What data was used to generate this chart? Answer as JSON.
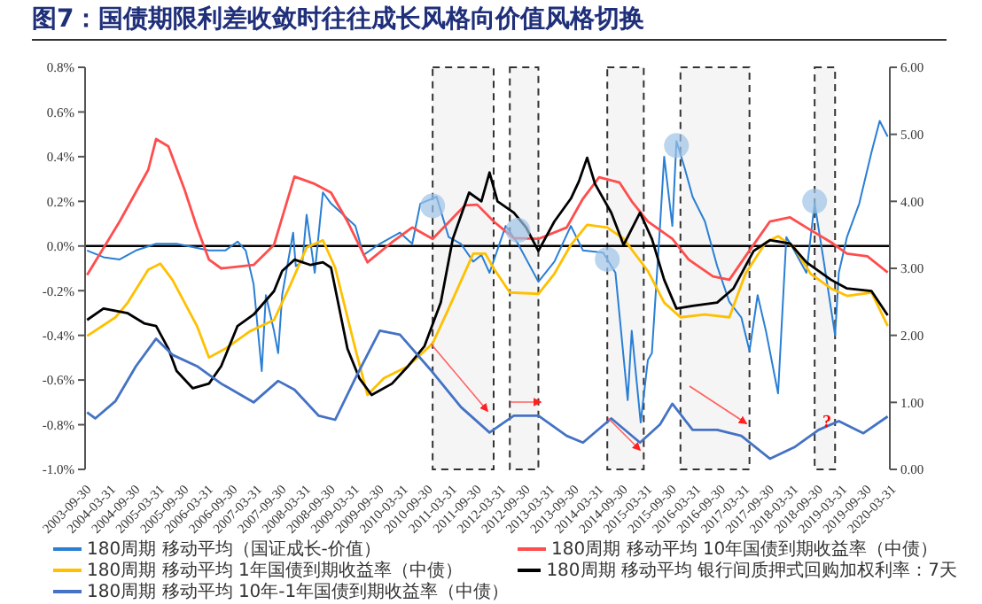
{
  "chart_data": {
    "type": "line",
    "title": "图7：国债期限利差收敛时往往成长风格向价值风格切换",
    "xlim": [
      "2003-09-30",
      "2020-03-31"
    ],
    "xticks": [
      "2003-09-30",
      "2004-03-31",
      "2004-09-30",
      "2005-03-31",
      "2005-09-30",
      "2006-03-31",
      "2006-09-30",
      "2007-03-31",
      "2007-09-30",
      "2008-03-31",
      "2008-09-30",
      "2009-03-31",
      "2009-09-30",
      "2010-03-31",
      "2010-09-30",
      "2011-03-31",
      "2011-09-30",
      "2012-03-31",
      "2012-09-30",
      "2013-03-31",
      "2013-09-30",
      "2014-03-31",
      "2014-09-30",
      "2015-03-31",
      "2015-09-30",
      "2016-03-31",
      "2016-09-30",
      "2017-03-31",
      "2017-09-30",
      "2018-03-31",
      "2018-09-30",
      "2019-03-31",
      "2019-09-30",
      "2020-03-31"
    ],
    "ylim": [
      -1.0,
      0.8
    ],
    "yticks": [
      {
        "value": -1.0,
        "label": "-1.0%"
      },
      {
        "value": -0.8,
        "label": "-0.8%"
      },
      {
        "value": -0.6,
        "label": "-0.6%"
      },
      {
        "value": -0.4,
        "label": "-0.4%"
      },
      {
        "value": -0.2,
        "label": "-0.2%"
      },
      {
        "value": 0,
        "label": "0.0%"
      },
      {
        "value": 0.2,
        "label": "0.2%"
      },
      {
        "value": 0.4,
        "label": "0.4%"
      },
      {
        "value": 0.6,
        "label": "0.6%"
      },
      {
        "value": 0.8,
        "label": "0.8%"
      }
    ],
    "y2lim": [
      0,
      6
    ],
    "y2ticks": [
      {
        "value": 0,
        "label": "0.00"
      },
      {
        "value": 1,
        "label": "1.00"
      },
      {
        "value": 2,
        "label": "2.00"
      },
      {
        "value": 3,
        "label": "3.00"
      },
      {
        "value": 4,
        "label": "4.00"
      },
      {
        "value": 5,
        "label": "5.00"
      },
      {
        "value": 6,
        "label": "6.00"
      }
    ],
    "legend": "bottom",
    "marker": "none",
    "series": [
      {
        "name": "180周期 移动平均（国证成长-价值）",
        "color": "#2a7fd4",
        "x": [
          "2003-10",
          "2004-02",
          "2004-06",
          "2004-10",
          "2005-03",
          "2005-08",
          "2006-04",
          "2006-08",
          "2006-11",
          "2007-01",
          "2007-03",
          "2007-05",
          "2007-06",
          "2007-08",
          "2007-09",
          "2007-10",
          "2008-01-05",
          "2008-01-25",
          "2008-03",
          "2008-04",
          "2008-06",
          "2008-08",
          "2008-10",
          "2009-01",
          "2009-04",
          "2009-06",
          "2009-10",
          "2010-03",
          "2010-06",
          "2010-08",
          "2010-12",
          "2011-03",
          "2011-06",
          "2011-09",
          "2011-11",
          "2012-01",
          "2012-05",
          "2012-08",
          "2013-01",
          "2013-05",
          "2013-09",
          "2013-12",
          "2014-05",
          "2014-08",
          "2014-11",
          "2014-12",
          "2015-02-20",
          "2015-04",
          "2015-05",
          "2015-07",
          "2015-08",
          "2015-10",
          "2015-11",
          "2016-01",
          "2016-03",
          "2016-06",
          "2016-09",
          "2016-12",
          "2017-03",
          "2017-05",
          "2017-07",
          "2017-09",
          "2017-12",
          "2018-02",
          "2018-04",
          "2018-07",
          "2018-09",
          "2018-11",
          "2019-02",
          "2019-03",
          "2019-05",
          "2019-08",
          "2019-11",
          "2020-01",
          "2020-03"
        ],
        "values": [
          -0.02,
          -0.05,
          -0.06,
          -0.02,
          0.01,
          0.01,
          -0.02,
          -0.02,
          0.02,
          -0.02,
          -0.17,
          -0.56,
          -0.22,
          -0.38,
          -0.48,
          -0.22,
          0.06,
          -0.09,
          -0.07,
          0.14,
          -0.12,
          0.24,
          0.19,
          0.14,
          0.09,
          -0.04,
          0.01,
          0.06,
          0.01,
          0.19,
          0.22,
          0.04,
          0.01,
          -0.07,
          -0.04,
          -0.12,
          0.09,
          0.01,
          -0.16,
          -0.07,
          0.09,
          -0.02,
          -0.03,
          -0.12,
          -0.69,
          -0.38,
          -0.79,
          -0.51,
          -0.48,
          0.09,
          0.4,
          0.09,
          0.47,
          0.35,
          0.22,
          0.11,
          -0.09,
          -0.25,
          -0.32,
          -0.47,
          -0.22,
          -0.38,
          -0.66,
          0.04,
          -0.02,
          -0.12,
          0.19,
          -0.04,
          -0.4,
          -0.12,
          0.04,
          0.19,
          0.42,
          0.56,
          0.49
        ]
      },
      {
        "name": "180周期 移动平均 10年国债到期收益率（中债）",
        "color": "#ff4d4d",
        "axis": "y2",
        "x": [
          "2003-10",
          "2004-06",
          "2005-01",
          "2005-03",
          "2005-06",
          "2005-10",
          "2006-01",
          "2006-04",
          "2006-07",
          "2007-03",
          "2007-08",
          "2008-01",
          "2008-06",
          "2008-10",
          "2009-02",
          "2009-07",
          "2010-01",
          "2010-06",
          "2010-11",
          "2011-07",
          "2011-10",
          "2012-02",
          "2012-07",
          "2013-01",
          "2013-08",
          "2013-12",
          "2014-04",
          "2014-09",
          "2014-12",
          "2015-04",
          "2015-10",
          "2016-02",
          "2016-08",
          "2016-12",
          "2017-04",
          "2017-10",
          "2018-03",
          "2018-07",
          "2019-01",
          "2019-05",
          "2019-10",
          "2020-03"
        ],
        "values": [
          2.9,
          3.7,
          4.47,
          4.93,
          4.82,
          4.17,
          3.61,
          3.13,
          3.0,
          3.05,
          3.35,
          4.37,
          4.26,
          4.13,
          3.7,
          3.09,
          3.39,
          3.61,
          3.44,
          3.94,
          3.95,
          3.7,
          3.45,
          3.44,
          3.61,
          4.04,
          4.36,
          4.28,
          4.0,
          3.7,
          3.44,
          3.13,
          2.88,
          2.83,
          3.18,
          3.7,
          3.76,
          3.61,
          3.39,
          3.22,
          3.18,
          2.94
        ]
      },
      {
        "name": "180周期 移动平均 1年国债到期收益率（中债）",
        "color": "#ffc000",
        "axis": "y2",
        "x": [
          "2003-10",
          "2004-05",
          "2004-08",
          "2005-01",
          "2005-04",
          "2005-07",
          "2006-01",
          "2006-04",
          "2006-08",
          "2007-02",
          "2007-08",
          "2007-12",
          "2008-04",
          "2008-08",
          "2008-11",
          "2009-04",
          "2009-07",
          "2009-11",
          "2010-05",
          "2010-11",
          "2011-03",
          "2011-09",
          "2011-12",
          "2012-02",
          "2012-06",
          "2013-01",
          "2013-05",
          "2013-09",
          "2014-01",
          "2014-06",
          "2014-10",
          "2015-04",
          "2015-08",
          "2015-12",
          "2016-06",
          "2016-12",
          "2017-04",
          "2017-09",
          "2017-12",
          "2018-04",
          "2018-08",
          "2019-01",
          "2019-05",
          "2019-11",
          "2020-03"
        ],
        "values": [
          1.99,
          2.27,
          2.49,
          2.98,
          3.07,
          2.83,
          2.14,
          1.67,
          1.8,
          2.06,
          2.23,
          2.75,
          3.31,
          3.42,
          3.01,
          1.8,
          1.11,
          1.36,
          1.54,
          1.88,
          2.4,
          3.22,
          3.22,
          3.0,
          2.64,
          2.62,
          2.92,
          3.35,
          3.65,
          3.61,
          3.44,
          2.96,
          2.49,
          2.27,
          2.31,
          2.27,
          2.92,
          3.39,
          3.48,
          3.31,
          2.92,
          2.7,
          2.59,
          2.64,
          2.14
        ]
      },
      {
        "name": "180周期 移动平均 银行间质押式回购加权利率：7天",
        "color": "#000000",
        "axis": "y2",
        "x": [
          "2003-10",
          "2004-02",
          "2004-08",
          "2004-12",
          "2005-03",
          "2005-06",
          "2005-08",
          "2005-12",
          "2006-04",
          "2006-07",
          "2006-11",
          "2007-03",
          "2007-08",
          "2007-10",
          "2008-01",
          "2008-05",
          "2008-08",
          "2008-10",
          "2009-02",
          "2009-05",
          "2009-08",
          "2010-01",
          "2010-05",
          "2010-09",
          "2011-01",
          "2011-04",
          "2011-08",
          "2011-11",
          "2012-01",
          "2012-03",
          "2012-07",
          "2012-10",
          "2013-01",
          "2013-05",
          "2013-09",
          "2013-11",
          "2014-01",
          "2014-03",
          "2014-07",
          "2014-10",
          "2015-02",
          "2015-05",
          "2015-08",
          "2015-11",
          "2016-03",
          "2016-09",
          "2017-01",
          "2017-06",
          "2017-10",
          "2018-03",
          "2018-07",
          "2019-01",
          "2019-05",
          "2019-11",
          "2020-03"
        ],
        "values": [
          2.23,
          2.4,
          2.33,
          2.18,
          2.14,
          1.8,
          1.47,
          1.21,
          1.28,
          1.54,
          2.14,
          2.31,
          2.66,
          2.96,
          3.13,
          3.05,
          3.09,
          3.01,
          1.8,
          1.36,
          1.11,
          1.28,
          1.54,
          1.84,
          2.49,
          3.44,
          4.13,
          4.0,
          4.43,
          4.0,
          3.83,
          3.61,
          3.26,
          3.7,
          4.04,
          4.3,
          4.65,
          4.26,
          3.83,
          3.35,
          3.83,
          3.44,
          2.83,
          2.4,
          2.44,
          2.49,
          2.7,
          3.26,
          3.42,
          3.37,
          3.09,
          2.83,
          2.7,
          2.66,
          2.3
        ]
      },
      {
        "name": "180周期 移动平均 10年-1年国债到期收益率（中债）",
        "color": "#4472c4",
        "axis": "y2",
        "x": [
          "2003-10",
          "2003-12",
          "2004-05",
          "2004-10",
          "2005-03",
          "2005-07",
          "2006-01",
          "2006-07",
          "2007-03",
          "2007-09",
          "2008-01",
          "2008-07",
          "2008-11",
          "2009-04",
          "2009-10",
          "2010-03",
          "2010-11",
          "2011-06",
          "2012-01",
          "2012-07",
          "2013-01",
          "2013-08",
          "2013-12",
          "2014-07",
          "2015-02",
          "2015-07",
          "2015-10",
          "2016-03",
          "2016-09",
          "2017-03",
          "2017-10",
          "2018-04",
          "2018-10",
          "2019-03",
          "2019-09",
          "2020-03"
        ],
        "values": [
          0.85,
          0.76,
          1.02,
          1.54,
          1.95,
          1.71,
          1.54,
          1.28,
          1.0,
          1.32,
          1.19,
          0.8,
          0.74,
          1.36,
          2.07,
          2.01,
          1.45,
          0.93,
          0.55,
          0.8,
          0.8,
          0.5,
          0.4,
          0.76,
          0.4,
          0.67,
          0.98,
          0.59,
          0.59,
          0.5,
          0.16,
          0.33,
          0.59,
          0.72,
          0.54,
          0.79
        ]
      },
      {
        "type": "scatter",
        "marker": "circle",
        "color": "#9dc3e6",
        "x": [
          "2010-11",
          "2012-08",
          "2014-06",
          "2015-11",
          "2018-09"
        ],
        "values": [
          0.18,
          0.07,
          -0.06,
          0.45,
          0.2
        ]
      }
    ],
    "ref_lines": [
      {
        "axis": "y",
        "value": 0,
        "color": "#000000"
      }
    ],
    "bands": [
      {
        "axis": "x",
        "from": "2010-11",
        "to": "2012-02",
        "color": "#333333"
      },
      {
        "axis": "x",
        "from": "2012-06",
        "to": "2013-01",
        "color": "#333333"
      },
      {
        "axis": "x",
        "from": "2014-06",
        "to": "2015-03",
        "color": "#333333"
      },
      {
        "axis": "x",
        "from": "2015-12",
        "to": "2017-05",
        "color": "#333333"
      },
      {
        "axis": "x",
        "from": "2018-09",
        "to": "2019-02",
        "color": "#333333"
      }
    ],
    "annotations": [
      {
        "text": "?",
        "x": "2018-12",
        "y": -0.78
      }
    ]
  }
}
